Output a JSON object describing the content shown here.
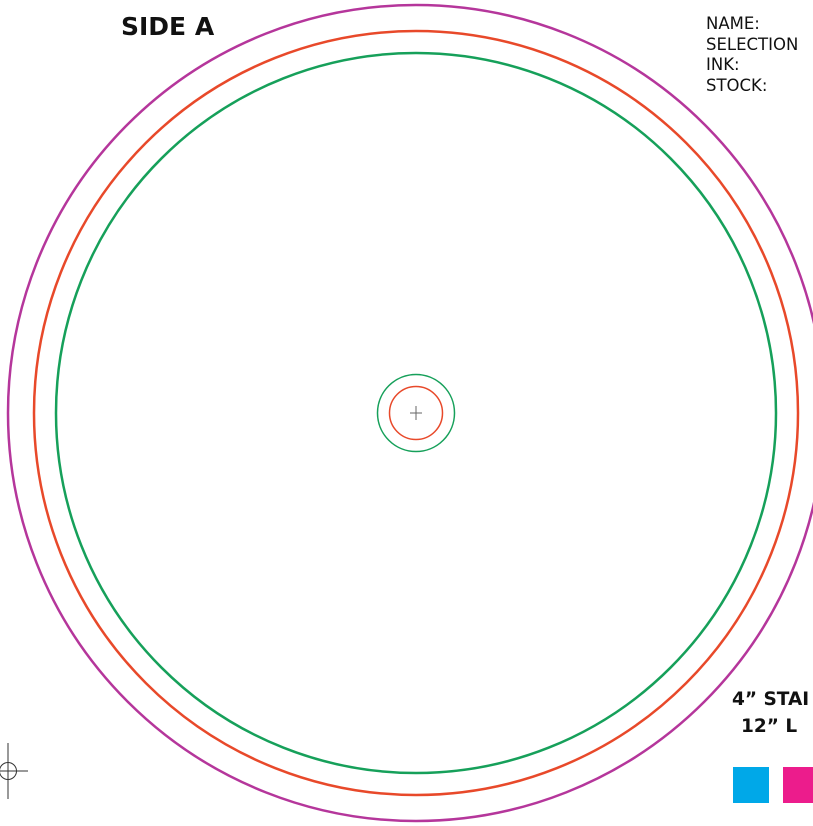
{
  "page": {
    "side_label": "SIDE A"
  },
  "info_fields": [
    {
      "label": "NAME:"
    },
    {
      "label": "SELECTION"
    },
    {
      "label": "INK:"
    },
    {
      "label": "STOCK:"
    }
  ],
  "spec_text": {
    "line1": "4” STAI",
    "line2": "12” L"
  },
  "guide_colors": {
    "outer_ring": "#b5369b",
    "middle_ring": "#e8492a",
    "inner_ring": "#16a05a",
    "center_hole_outer": "#16a05a",
    "center_hole_inner": "#e8492a",
    "crosshair": "#666666",
    "registration_mark": "#333333"
  },
  "color_swatches": [
    {
      "name": "cyan",
      "color": "#00a8e8"
    },
    {
      "name": "magenta",
      "color": "#ec1c8c"
    }
  ]
}
